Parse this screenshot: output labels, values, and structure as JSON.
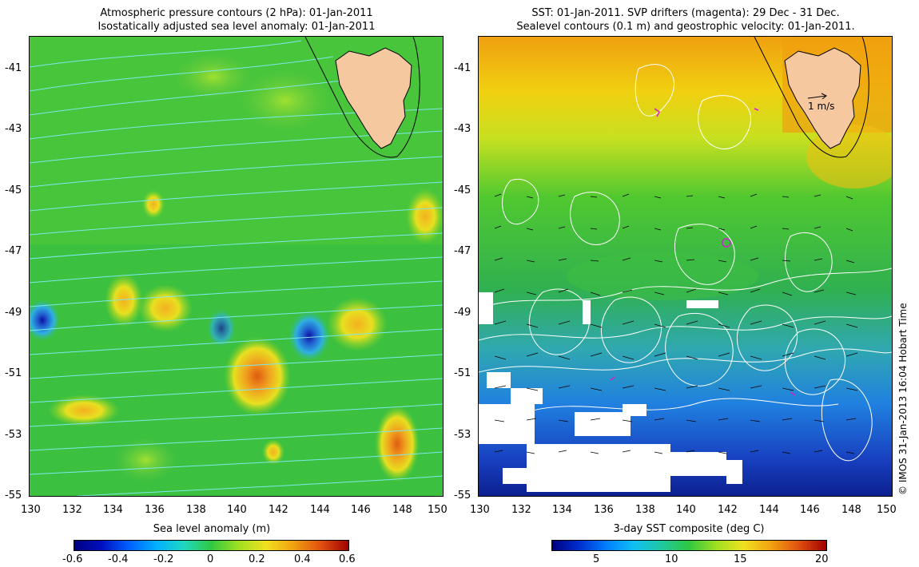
{
  "left_panel": {
    "title_line1": "Atmospheric pressure contours (2 hPa): 01-Jan-2011",
    "title_line2": "Isostatically adjusted sea level anomaly: 01-Jan-2011",
    "colorbar_title": "Sea level anomaly (m)",
    "colorbar_ticks": [
      "-0.6",
      "-0.4",
      "-0.2",
      "0",
      "0.2",
      "0.4",
      "0.6"
    ]
  },
  "right_panel": {
    "title_line1": "SST: 01-Jan-2011. SVP drifters (magenta): 29 Dec - 31 Dec.",
    "title_line2": "Sealevel contours (0.1 m) and geostrophic velocity: 01-Jan-2011.",
    "colorbar_title": "3-day SST composite (deg C)",
    "colorbar_ticks": [
      "5",
      "10",
      "15",
      "20"
    ],
    "velocity_scale_label": "1 m/s"
  },
  "axes": {
    "x_ticks": [
      "130",
      "132",
      "134",
      "136",
      "138",
      "140",
      "142",
      "144",
      "146",
      "148",
      "150"
    ],
    "y_ticks": [
      "-41",
      "-43",
      "-45",
      "-47",
      "-49",
      "-51",
      "-53",
      "-55"
    ],
    "lon_range": [
      130,
      150
    ],
    "lat_range": [
      -55,
      -40
    ]
  },
  "credit": "© IMOS 31-Jan-2013 16:04 Hobart Time",
  "colors": {
    "land": "#f5c8a0",
    "pressure_contour": "#7ee8e8",
    "sst_contour": "#ffffff",
    "drifters": "#d020d0"
  }
}
